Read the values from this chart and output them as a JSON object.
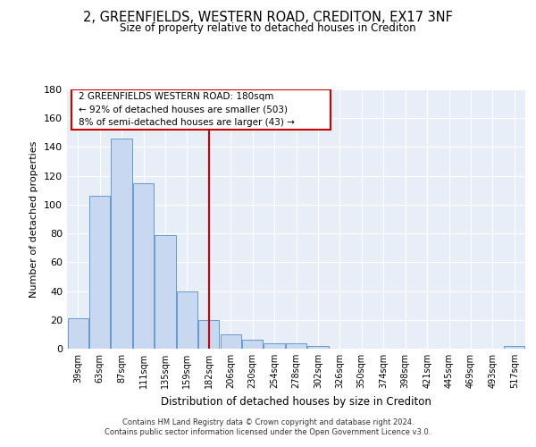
{
  "title": "2, GREENFIELDS, WESTERN ROAD, CREDITON, EX17 3NF",
  "subtitle": "Size of property relative to detached houses in Crediton",
  "xlabel": "Distribution of detached houses by size in Crediton",
  "ylabel": "Number of detached properties",
  "bar_color": "#c8d8f0",
  "bar_edge_color": "#6699cc",
  "background_color": "#e8eef8",
  "categories": [
    "39sqm",
    "63sqm",
    "87sqm",
    "111sqm",
    "135sqm",
    "159sqm",
    "182sqm",
    "206sqm",
    "230sqm",
    "254sqm",
    "278sqm",
    "302sqm",
    "326sqm",
    "350sqm",
    "374sqm",
    "398sqm",
    "421sqm",
    "445sqm",
    "469sqm",
    "493sqm",
    "517sqm"
  ],
  "values": [
    21,
    106,
    146,
    115,
    79,
    40,
    20,
    10,
    6,
    4,
    4,
    2,
    0,
    0,
    0,
    0,
    0,
    0,
    0,
    0,
    2
  ],
  "ylim": [
    0,
    180
  ],
  "yticks": [
    0,
    20,
    40,
    60,
    80,
    100,
    120,
    140,
    160,
    180
  ],
  "vline_index": 6,
  "vline_color": "#cc0000",
  "annotation_text_line1": "2 GREENFIELDS WESTERN ROAD: 180sqm",
  "annotation_text_line2": "← 92% of detached houses are smaller (503)",
  "annotation_text_line3": "8% of semi-detached houses are larger (43) →",
  "annotation_box_edge_color": "#cc0000",
  "annotation_box_face_color": "#ffffff",
  "footer_line1": "Contains HM Land Registry data © Crown copyright and database right 2024.",
  "footer_line2": "Contains public sector information licensed under the Open Government Licence v3.0."
}
